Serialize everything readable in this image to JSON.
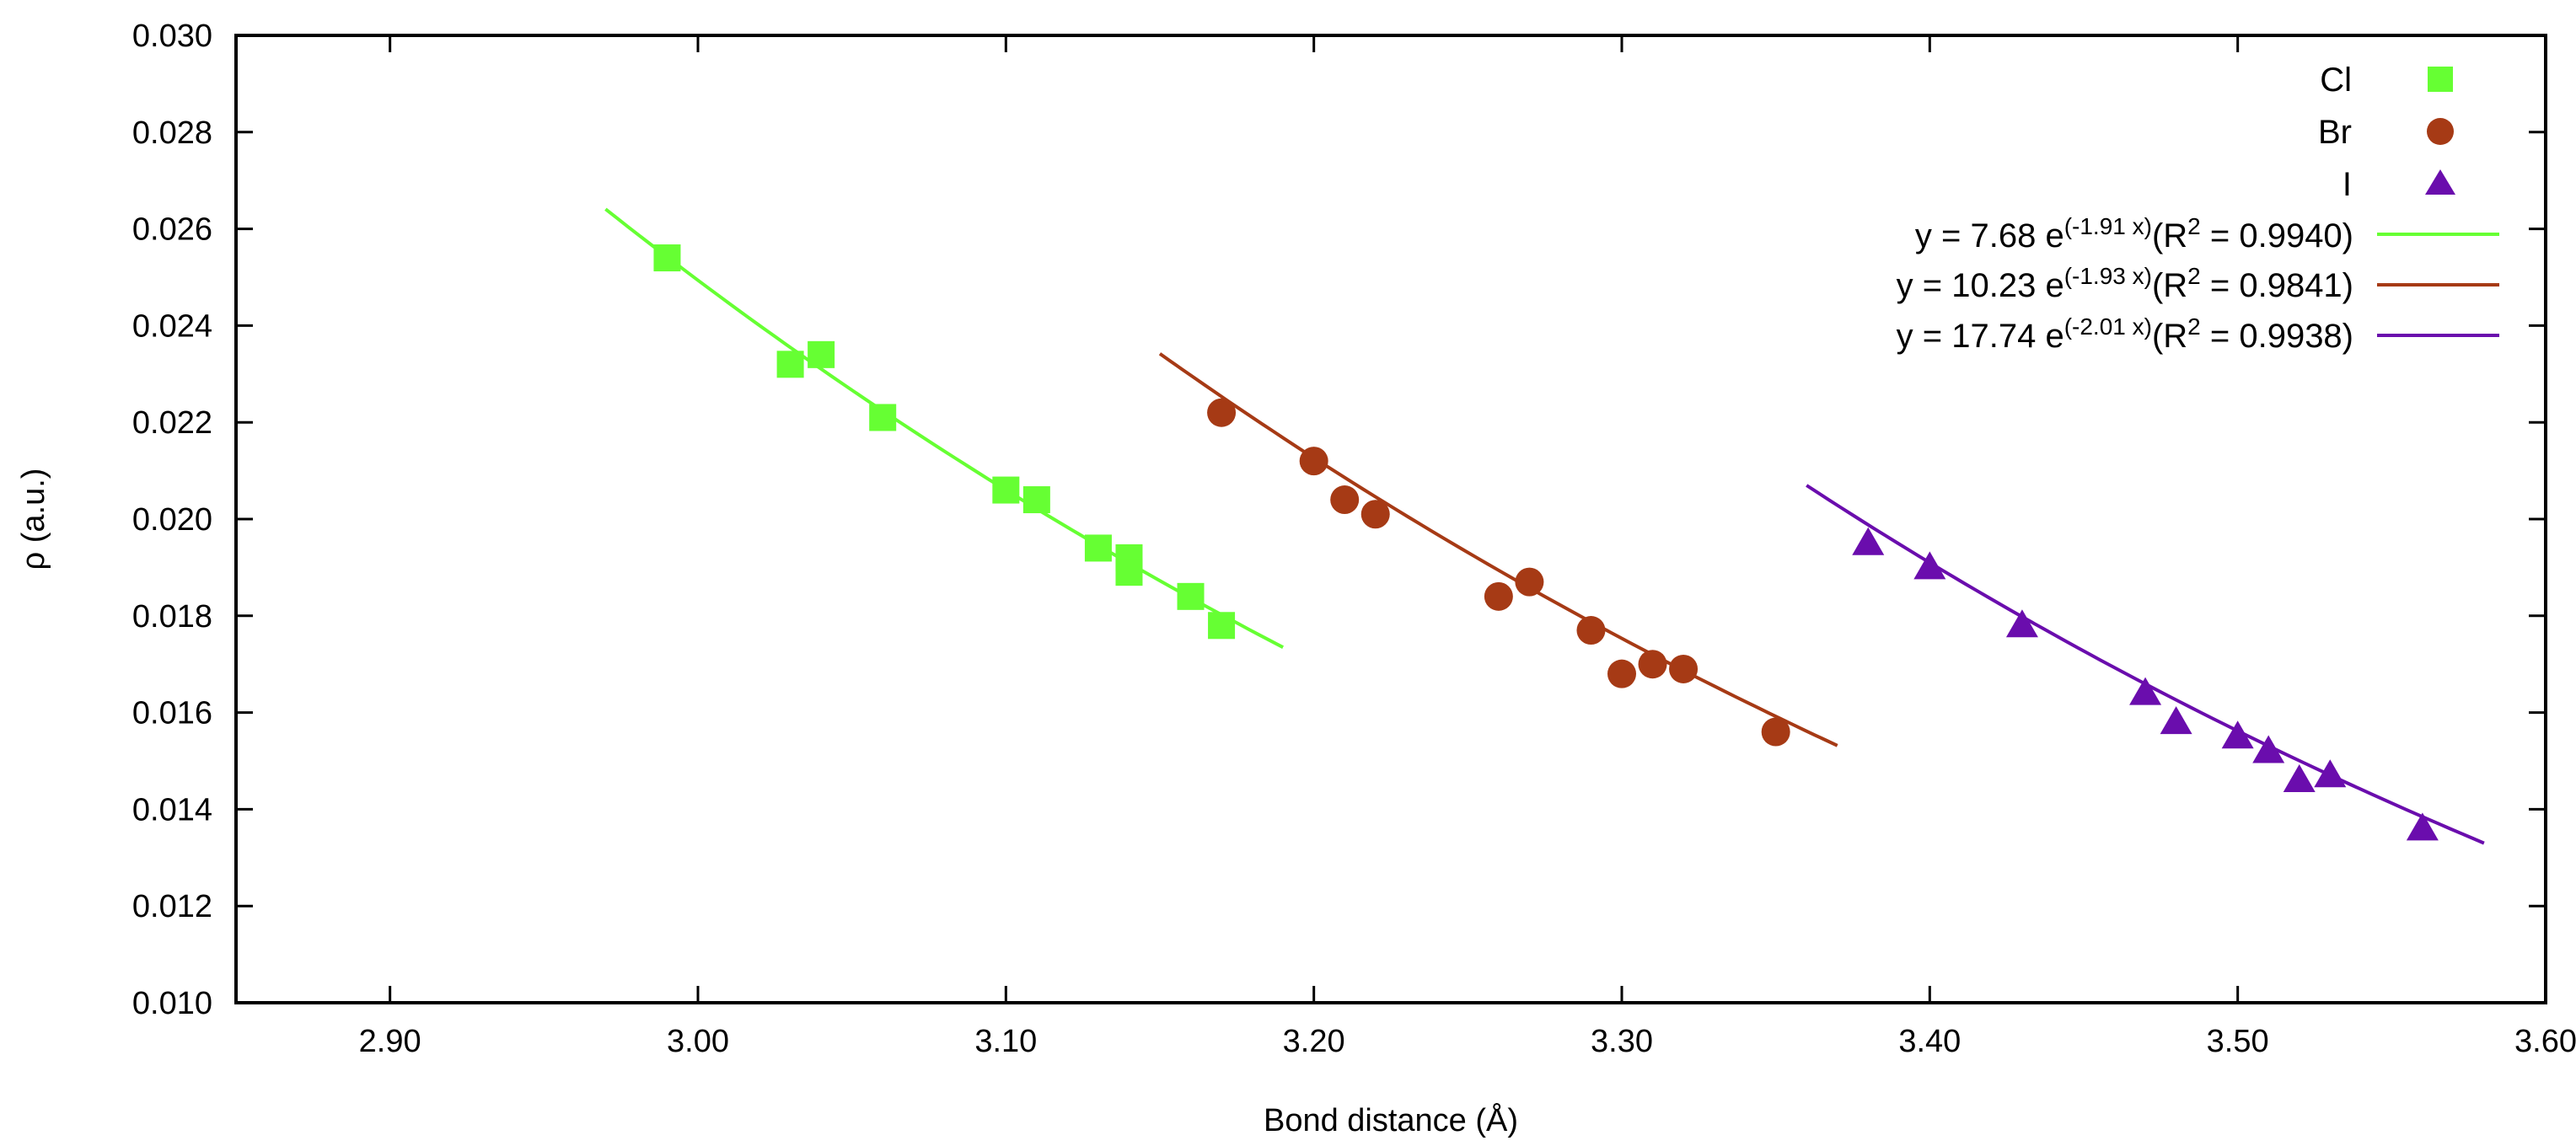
{
  "chart_data": {
    "type": "scatter",
    "title": "",
    "xlabel": "Bond distance (Å)",
    "ylabel": "ρ (a.u.)",
    "xlim": [
      2.85,
      3.6
    ],
    "ylim": [
      0.01,
      0.03
    ],
    "xticks": [
      2.9,
      3.0,
      3.1,
      3.2,
      3.3,
      3.4,
      3.5,
      3.6
    ],
    "xtick_labels": [
      "2.90",
      "3.00",
      "3.10",
      "3.20",
      "3.30",
      "3.40",
      "3.50",
      "3.60"
    ],
    "yticks": [
      0.01,
      0.012,
      0.014,
      0.016,
      0.018,
      0.02,
      0.022,
      0.024,
      0.026,
      0.028,
      0.03
    ],
    "ytick_labels": [
      "0.010",
      "0.012",
      "0.014",
      "0.016",
      "0.018",
      "0.020",
      "0.022",
      "0.024",
      "0.026",
      "0.028",
      "0.030"
    ],
    "grid": false,
    "legend_position": "top-right",
    "series": [
      {
        "name": "Cl",
        "marker": "square",
        "color": "#66ff33",
        "x": [
          2.99,
          3.03,
          3.04,
          3.06,
          3.1,
          3.11,
          3.13,
          3.14,
          3.14,
          3.16,
          3.17
        ],
        "y": [
          0.0254,
          0.0232,
          0.0234,
          0.0221,
          0.0206,
          0.0204,
          0.0194,
          0.0192,
          0.0189,
          0.0184,
          0.0178
        ]
      },
      {
        "name": "Br",
        "marker": "circle",
        "color": "#a63a15",
        "x": [
          3.17,
          3.2,
          3.21,
          3.22,
          3.26,
          3.27,
          3.29,
          3.3,
          3.31,
          3.32,
          3.35
        ],
        "y": [
          0.0222,
          0.0212,
          0.0204,
          0.0201,
          0.0184,
          0.0187,
          0.0177,
          0.0168,
          0.017,
          0.0169,
          0.0156
        ]
      },
      {
        "name": "I",
        "marker": "triangle",
        "color": "#6a0dad",
        "x": [
          3.38,
          3.4,
          3.43,
          3.47,
          3.48,
          3.5,
          3.51,
          3.52,
          3.53,
          3.56
        ],
        "y": [
          0.0195,
          0.019,
          0.0178,
          0.0164,
          0.0158,
          0.0155,
          0.0152,
          0.0146,
          0.0147,
          0.0136
        ]
      }
    ],
    "fits": [
      {
        "series": "Cl",
        "color": "#66ff33",
        "a": 7.68,
        "b": -1.91,
        "x_range": [
          2.97,
          3.19
        ],
        "label_main": "y = 7.68 e",
        "label_exp": "(-1.91 x)",
        "label_r_pre": "(R",
        "label_r_exp": "2",
        "label_r_post": " = 0.9940)"
      },
      {
        "series": "Br",
        "color": "#a63a15",
        "a": 10.23,
        "b": -1.93,
        "x_range": [
          3.15,
          3.37
        ],
        "label_main": "y = 10.23 e",
        "label_exp": "(-1.93 x)",
        "label_r_pre": "(R",
        "label_r_exp": "2",
        "label_r_post": " = 0.9841)"
      },
      {
        "series": "I",
        "color": "#6a0dad",
        "a": 17.74,
        "b": -2.01,
        "x_range": [
          3.36,
          3.58
        ],
        "label_main": "y = 17.74 e",
        "label_exp": "(-2.01 x)",
        "label_r_pre": "(R",
        "label_r_exp": "2",
        "label_r_post": " = 0.9938)"
      }
    ]
  }
}
